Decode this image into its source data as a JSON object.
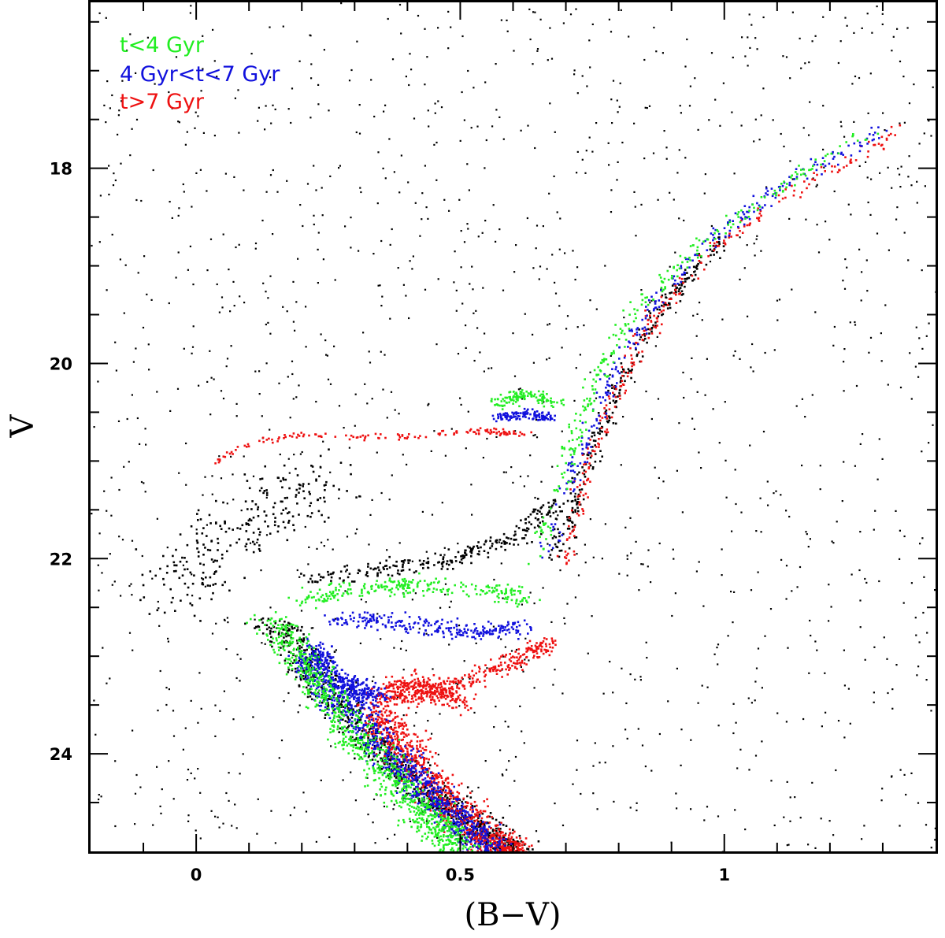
{
  "chart_data": {
    "type": "scatter",
    "title": "",
    "xlabel": "(B−V)",
    "ylabel": "V",
    "xlim": [
      -0.2,
      1.4
    ],
    "ylim": [
      25.0,
      16.3
    ],
    "y_inverted": true,
    "grid": false,
    "legend_position": "top-left",
    "x_ticks": [
      {
        "value": 0,
        "label": "0"
      },
      {
        "value": 0.5,
        "label": "0.5"
      },
      {
        "value": 1,
        "label": "1"
      }
    ],
    "y_ticks": [
      {
        "value": 18,
        "label": "18"
      },
      {
        "value": 20,
        "label": "20"
      },
      {
        "value": 22,
        "label": "22"
      },
      {
        "value": 24,
        "label": "24"
      }
    ],
    "series": [
      {
        "name": "t<4 Gyr",
        "color": "#22ee22",
        "features": [
          {
            "part": "main-sequence",
            "x": [
              0.14,
              0.22,
              0.3,
              0.38,
              0.45,
              0.5
            ],
            "y": [
              22.6,
              23.2,
              23.8,
              24.3,
              24.7,
              25.0
            ]
          },
          {
            "part": "subgiant-branch",
            "x": [
              0.2,
              0.3,
              0.42,
              0.55,
              0.62
            ],
            "y": [
              22.4,
              22.3,
              22.25,
              22.3,
              22.4
            ]
          },
          {
            "part": "red-giant-branch",
            "x": [
              0.64,
              0.7,
              0.75,
              0.82,
              0.95,
              1.1,
              1.28
            ],
            "y": [
              22.0,
              21.0,
              20.2,
              19.5,
              18.8,
              18.2,
              17.6
            ]
          },
          {
            "part": "red-clump",
            "x": [
              0.57,
              0.62,
              0.68
            ],
            "y": [
              20.4,
              20.3,
              20.4
            ]
          }
        ]
      },
      {
        "name": "4 Gyr<t<7 Gyr",
        "color": "#1111dd",
        "features": [
          {
            "part": "main-sequence",
            "x": [
              0.2,
              0.3,
              0.4,
              0.48,
              0.56
            ],
            "y": [
              23.0,
              23.6,
              24.2,
              24.6,
              25.0
            ]
          },
          {
            "part": "turnoff",
            "x": [
              0.22,
              0.28,
              0.34
            ],
            "y": [
              22.9,
              23.3,
              23.4
            ]
          },
          {
            "part": "subgiant-branch",
            "x": [
              0.26,
              0.4,
              0.52,
              0.62
            ],
            "y": [
              22.6,
              22.65,
              22.75,
              22.7
            ]
          },
          {
            "part": "red-giant-branch",
            "x": [
              0.66,
              0.72,
              0.78,
              0.85,
              0.96,
              1.1,
              1.3
            ],
            "y": [
              22.0,
              21.0,
              20.2,
              19.5,
              18.8,
              18.2,
              17.6
            ]
          },
          {
            "part": "red-clump",
            "x": [
              0.57,
              0.62,
              0.67
            ],
            "y": [
              20.55,
              20.5,
              20.55
            ]
          }
        ]
      },
      {
        "name": "t>7 Gyr",
        "color": "#ee1111",
        "features": [
          {
            "part": "main-sequence",
            "x": [
              0.34,
              0.4,
              0.48,
              0.56,
              0.6
            ],
            "y": [
              23.6,
              24.0,
              24.5,
              24.9,
              25.0
            ]
          },
          {
            "part": "turnoff",
            "x": [
              0.34,
              0.38,
              0.44,
              0.5
            ],
            "y": [
              23.5,
              23.3,
              23.3,
              23.5
            ]
          },
          {
            "part": "subgiant-branch",
            "x": [
              0.4,
              0.5,
              0.6,
              0.67
            ],
            "y": [
              23.45,
              23.25,
              23.05,
              22.85
            ]
          },
          {
            "part": "red-giant-branch",
            "x": [
              0.7,
              0.74,
              0.8,
              0.87,
              0.98,
              1.14,
              1.33
            ],
            "y": [
              22.0,
              21.0,
              20.2,
              19.5,
              18.8,
              18.2,
              17.6
            ]
          },
          {
            "part": "horizontal-branch",
            "x": [
              0.03,
              0.1,
              0.2,
              0.33,
              0.45,
              0.55,
              0.62
            ],
            "y": [
              21.0,
              20.8,
              20.72,
              20.75,
              20.72,
              20.68,
              20.72
            ]
          }
        ]
      },
      {
        "name": "",
        "color": "#000000",
        "features": [
          {
            "part": "main-sequence",
            "x": [
              0.14,
              0.24,
              0.34,
              0.44,
              0.52,
              0.6
            ],
            "y": [
              22.6,
              23.3,
              23.9,
              24.4,
              24.7,
              25.0
            ]
          },
          {
            "part": "blue-plume",
            "x": [
              -0.05,
              0.05,
              0.15,
              0.25
            ],
            "y": [
              22.4,
              21.8,
              21.4,
              21.2
            ]
          },
          {
            "part": "subgiant-branch",
            "x": [
              0.22,
              0.35,
              0.48,
              0.6,
              0.68
            ],
            "y": [
              22.2,
              22.1,
              22.0,
              21.8,
              21.4
            ]
          },
          {
            "part": "red-giant-branch",
            "x": [
              0.68,
              0.74,
              0.8,
              0.88,
              1.0
            ],
            "y": [
              22.0,
              21.0,
              20.2,
              19.4,
              18.7
            ]
          },
          {
            "part": "field-contamination",
            "x": [
              -0.2,
              1.4
            ],
            "y": [
              16.3,
              25.0
            ]
          }
        ]
      }
    ]
  }
}
